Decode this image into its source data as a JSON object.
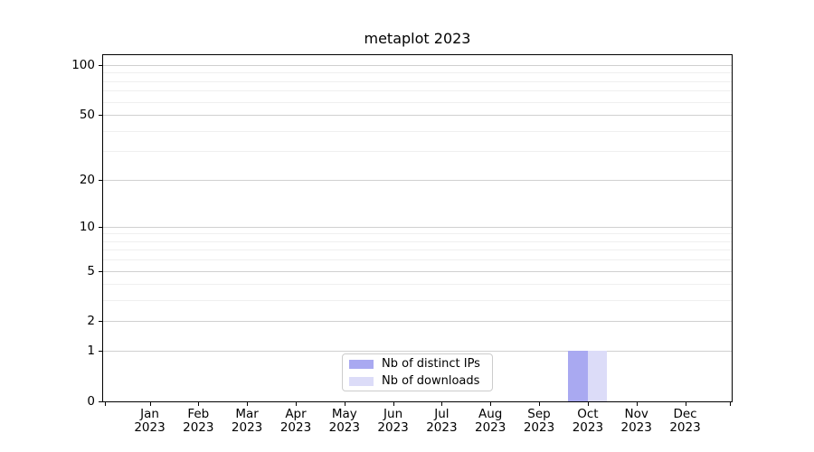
{
  "title": "metaplot 2023",
  "chart_data": {
    "type": "bar",
    "title": "metaplot 2023",
    "x_tick_months": [
      "Jan",
      "Feb",
      "Mar",
      "Apr",
      "May",
      "Jun",
      "Jul",
      "Aug",
      "Sep",
      "Oct",
      "Nov",
      "Dec"
    ],
    "x_tick_year": "2023",
    "series": [
      {
        "key": "distinct-ips",
        "name": "Nb of distinct IPs",
        "color": "#a9a9f1",
        "values": [
          0,
          0,
          0,
          0,
          0,
          0,
          0,
          0,
          0,
          1,
          0,
          0
        ]
      },
      {
        "key": "downloads",
        "name": "Nb of downloads",
        "color": "#dcdcf8",
        "values": [
          0,
          0,
          0,
          0,
          0,
          0,
          0,
          0,
          0,
          1,
          0,
          0
        ]
      }
    ],
    "y_axis": {
      "scale": "log1p",
      "major_ticks": [
        0,
        1,
        2,
        5,
        10,
        20,
        50,
        100
      ],
      "minor_ticks": [
        3,
        4,
        6,
        7,
        8,
        9,
        30,
        40,
        60,
        70,
        80,
        90
      ],
      "max_value": 114.5
    },
    "legend": {
      "position": "lower center",
      "entries": [
        "Nb of distinct IPs",
        "Nb of downloads"
      ]
    },
    "grid": "horizontal"
  },
  "colors": {
    "bar_distinct_ips": "#a9a9f1",
    "bar_downloads": "#dcdcf8",
    "grid_major": "#d0d0d0",
    "grid_minor": "#efefef",
    "spine": "#000000",
    "legend_border": "#cccccc",
    "background": "#ffffff",
    "text": "#000000"
  }
}
